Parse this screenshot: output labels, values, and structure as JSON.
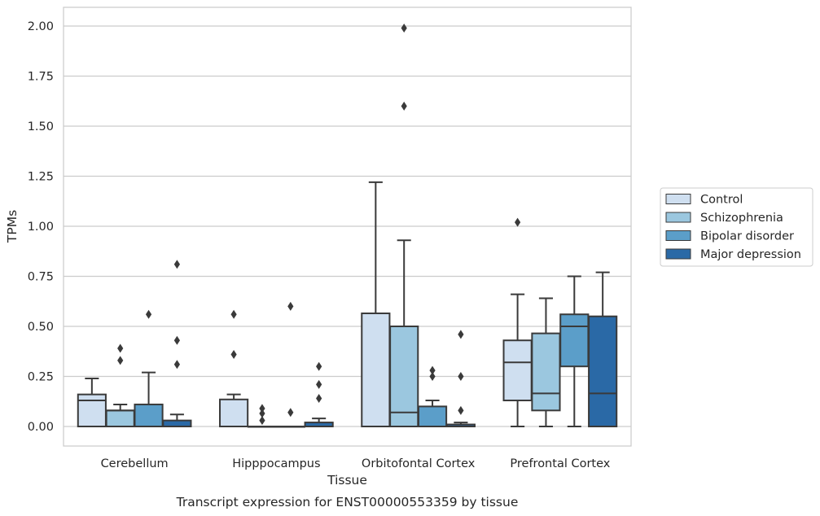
{
  "chart_data": {
    "type": "box",
    "caption": "Transcript expression for ENST00000553359 by tissue",
    "xlabel": "Tissue",
    "ylabel": "TPMs",
    "ylim": [
      -0.1,
      2.09
    ],
    "yticks": [
      "0.00",
      "0.25",
      "0.50",
      "0.75",
      "1.00",
      "1.25",
      "1.50",
      "1.75",
      "2.00"
    ],
    "grid": "horizontal",
    "legend_position": "right",
    "categories": [
      "Cerebellum",
      "Hipppocampus",
      "Orbitofontal Cortex",
      "Prefrontal Cortex"
    ],
    "series": [
      {
        "name": "Control",
        "color": "#cfdff0",
        "boxes": [
          {
            "whisker_low": 0.0,
            "q1": 0.0,
            "median": 0.13,
            "q3": 0.16,
            "whisker_high": 0.24,
            "outliers": []
          },
          {
            "whisker_low": 0.0,
            "q1": 0.0,
            "median": 0.0,
            "q3": 0.135,
            "whisker_high": 0.16,
            "outliers": [
              0.36,
              0.56
            ]
          },
          {
            "whisker_low": 0.0,
            "q1": 0.0,
            "median": 0.0,
            "q3": 0.565,
            "whisker_high": 1.22,
            "outliers": []
          },
          {
            "whisker_low": 0.0,
            "q1": 0.13,
            "median": 0.32,
            "q3": 0.43,
            "whisker_high": 0.66,
            "outliers": [
              1.02
            ]
          }
        ]
      },
      {
        "name": "Schizophrenia",
        "color": "#9bc7df",
        "boxes": [
          {
            "whisker_low": 0.0,
            "q1": 0.0,
            "median": 0.08,
            "q3": 0.08,
            "whisker_high": 0.11,
            "outliers": [
              0.33,
              0.39
            ]
          },
          {
            "whisker_low": 0.0,
            "q1": 0.0,
            "median": 0.0,
            "q3": 0.0,
            "whisker_high": 0.0,
            "outliers": [
              0.03,
              0.065,
              0.09
            ]
          },
          {
            "whisker_low": 0.0,
            "q1": 0.0,
            "median": 0.07,
            "q3": 0.5,
            "whisker_high": 0.93,
            "outliers": [
              1.6,
              1.99
            ]
          },
          {
            "whisker_low": 0.0,
            "q1": 0.08,
            "median": 0.165,
            "q3": 0.465,
            "whisker_high": 0.64,
            "outliers": []
          }
        ]
      },
      {
        "name": "Bipolar disorder",
        "color": "#5b9ec9",
        "boxes": [
          {
            "whisker_low": 0.0,
            "q1": 0.0,
            "median": 0.0,
            "q3": 0.11,
            "whisker_high": 0.27,
            "outliers": [
              0.56
            ]
          },
          {
            "whisker_low": 0.0,
            "q1": 0.0,
            "median": 0.0,
            "q3": 0.0,
            "whisker_high": 0.0,
            "outliers": [
              0.07,
              0.6
            ]
          },
          {
            "whisker_low": 0.0,
            "q1": 0.0,
            "median": 0.0,
            "q3": 0.1,
            "whisker_high": 0.13,
            "outliers": [
              0.25,
              0.28
            ]
          },
          {
            "whisker_low": 0.0,
            "q1": 0.3,
            "median": 0.5,
            "q3": 0.56,
            "whisker_high": 0.75,
            "outliers": []
          }
        ]
      },
      {
        "name": "Major depression",
        "color": "#2a69a6",
        "boxes": [
          {
            "whisker_low": 0.0,
            "q1": 0.0,
            "median": 0.0,
            "q3": 0.03,
            "whisker_high": 0.06,
            "outliers": [
              0.31,
              0.43,
              0.81
            ]
          },
          {
            "whisker_low": 0.0,
            "q1": 0.0,
            "median": 0.0,
            "q3": 0.02,
            "whisker_high": 0.04,
            "outliers": [
              0.14,
              0.21,
              0.3
            ]
          },
          {
            "whisker_low": 0.0,
            "q1": 0.0,
            "median": 0.0,
            "q3": 0.01,
            "whisker_high": 0.02,
            "outliers": [
              0.08,
              0.25,
              0.46
            ]
          },
          {
            "whisker_low": 0.0,
            "q1": 0.0,
            "median": 0.165,
            "q3": 0.55,
            "whisker_high": 0.77,
            "outliers": []
          }
        ]
      }
    ]
  }
}
